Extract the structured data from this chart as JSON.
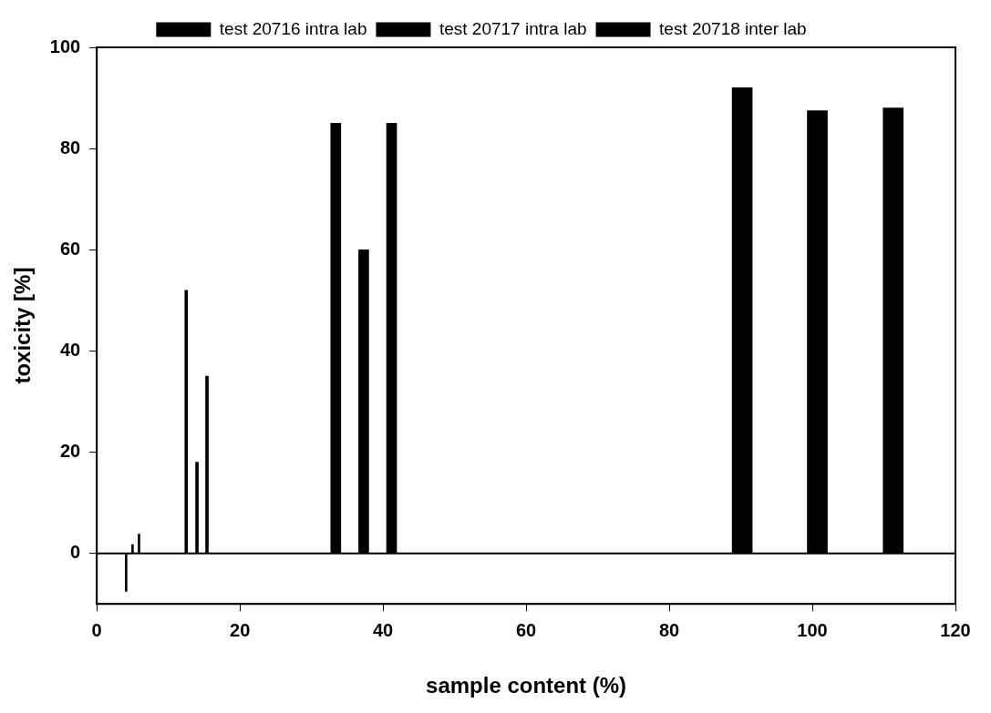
{
  "chart_data": {
    "type": "bar",
    "xlabel": "sample content (%)",
    "ylabel": "toxicity [%]",
    "xlim": [
      0,
      120
    ],
    "xticks": [
      0,
      20,
      40,
      60,
      80,
      100,
      120
    ],
    "ylim": [
      -10,
      100
    ],
    "yticks": [
      0,
      20,
      40,
      60,
      80,
      100
    ],
    "series": [
      {
        "name": "test 20716 intra lab",
        "color": "#000000",
        "x": [
          4.1,
          12.5,
          33.4,
          90.2
        ],
        "values": [
          -7.5,
          52,
          85,
          92
        ]
      },
      {
        "name": "test 20717 intra lab",
        "color": "#000000",
        "x": [
          5,
          14,
          37.3,
          100.7
        ],
        "values": [
          1.7,
          18,
          60,
          87.5
        ]
      },
      {
        "name": "test 20718 inter lab",
        "color": "#000000",
        "x": [
          5.9,
          15.4,
          41.2,
          111.3
        ],
        "values": [
          3.8,
          35,
          85,
          88
        ]
      }
    ],
    "ref_lines": [
      {
        "axis": "y",
        "value": 0,
        "color": "#000000"
      }
    ],
    "grid": false,
    "legend": "top"
  }
}
